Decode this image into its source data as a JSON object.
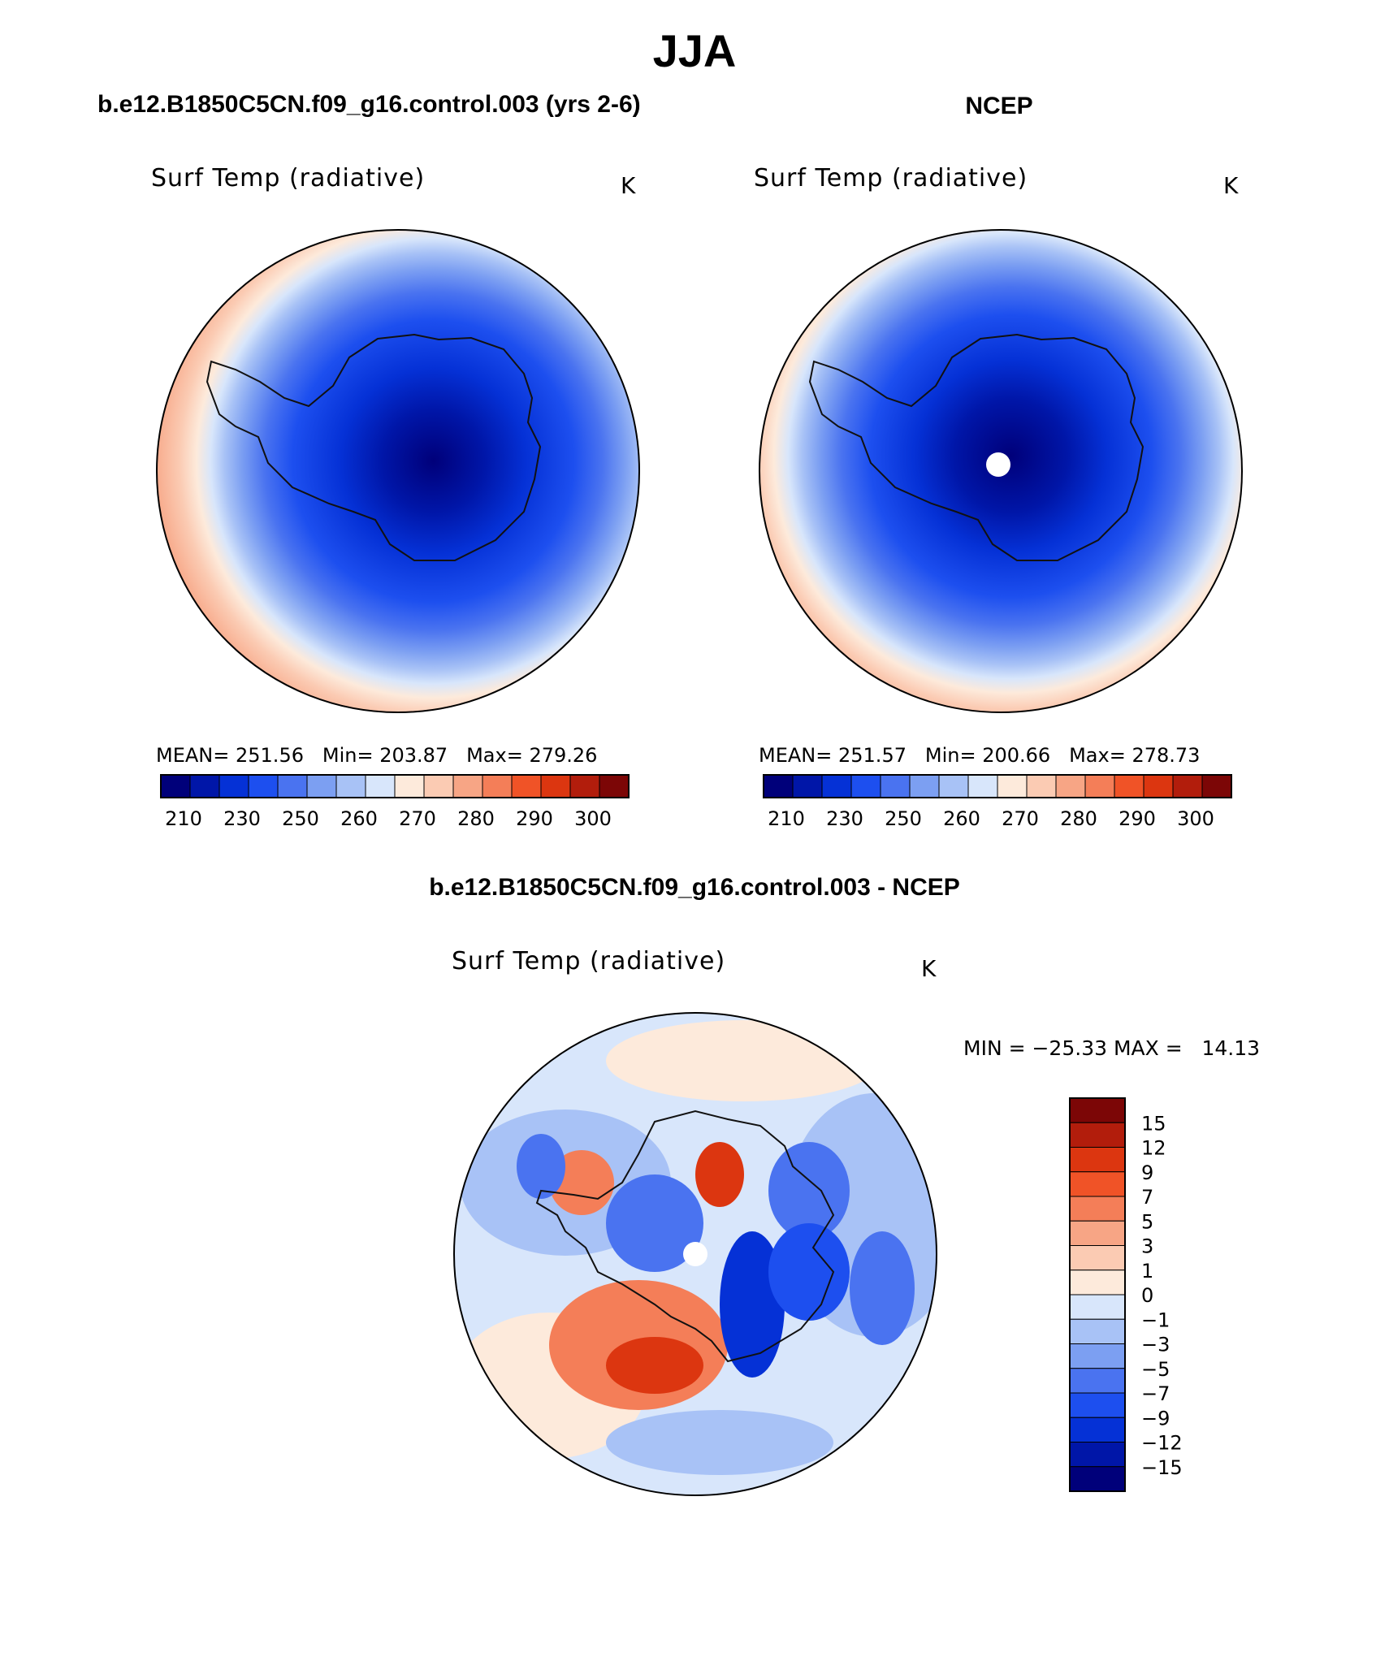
{
  "figure": {
    "title": "JJA",
    "colors": {
      "levels_abs": [
        "#00007a",
        "#0016a8",
        "#0531d6",
        "#1d4fef",
        "#4a73f0",
        "#7c9ff2",
        "#a8c2f6",
        "#d8e6fb",
        "#fdeadb",
        "#fbcbb3",
        "#f7a585",
        "#f47e58",
        "#f05327",
        "#dc3610",
        "#b21d0c",
        "#7c0606"
      ],
      "levels_diff": [
        "#00007a",
        "#0016a8",
        "#0531d6",
        "#1d4fef",
        "#4a73f0",
        "#7c9ff2",
        "#a8c2f6",
        "#d8e6fb",
        "#fdeadb",
        "#fbcbb3",
        "#f7a585",
        "#f47e58",
        "#f05327",
        "#dc3610",
        "#b21d0c",
        "#7c0606"
      ]
    }
  },
  "panels": {
    "model": {
      "title": "b.e12.B1850C5CN.f09_g16.control.003 (yrs 2-6)",
      "variable": "Surf Temp (radiative)",
      "units": "K",
      "mean_label": "MEAN=",
      "mean": "251.56",
      "min_label": "Min=",
      "min": "203.87",
      "max_label": "Max=",
      "max": "279.26"
    },
    "obs": {
      "title": "NCEP",
      "variable": "Surf Temp (radiative)",
      "units": "K",
      "mean_label": "MEAN=",
      "mean": "251.57",
      "min_label": "Min=",
      "min": "200.66",
      "max_label": "Max=",
      "max": "278.73"
    },
    "diff": {
      "title": "b.e12.B1850C5CN.f09_g16.control.003 - NCEP",
      "variable": "Surf Temp (radiative)",
      "units": "K",
      "minmax_text": "MIN = −25.33 MAX =   14.13"
    }
  },
  "chart_data": [
    {
      "type": "heatmap",
      "title": "Surf Temp (radiative)",
      "subtitle": "b.e12.B1850C5CN.f09_g16.control.003 (yrs 2-6)",
      "units": "K",
      "projection": "south polar stereographic",
      "mean": 251.56,
      "min": 203.87,
      "max": 279.26,
      "colorbar_ticks": [
        "210",
        "230",
        "250",
        "260",
        "270",
        "280",
        "290",
        "300"
      ],
      "colorbar_orientation": "horizontal"
    },
    {
      "type": "heatmap",
      "title": "Surf Temp (radiative)",
      "subtitle": "NCEP",
      "units": "K",
      "projection": "south polar stereographic",
      "mean": 251.57,
      "min": 200.66,
      "max": 278.73,
      "colorbar_ticks": [
        "210",
        "230",
        "250",
        "260",
        "270",
        "280",
        "290",
        "300"
      ],
      "colorbar_orientation": "horizontal"
    },
    {
      "type": "heatmap",
      "title": "Surf Temp (radiative)",
      "subtitle": "b.e12.B1850C5CN.f09_g16.control.003 - NCEP",
      "units": "K",
      "projection": "south polar stereographic",
      "min": -25.33,
      "max": 14.13,
      "colorbar_ticks": [
        "15",
        "12",
        "9",
        "7",
        "5",
        "3",
        "1",
        "0",
        "−1",
        "−3",
        "−5",
        "−7",
        "−9",
        "−12",
        "−15"
      ],
      "colorbar_orientation": "vertical"
    }
  ]
}
